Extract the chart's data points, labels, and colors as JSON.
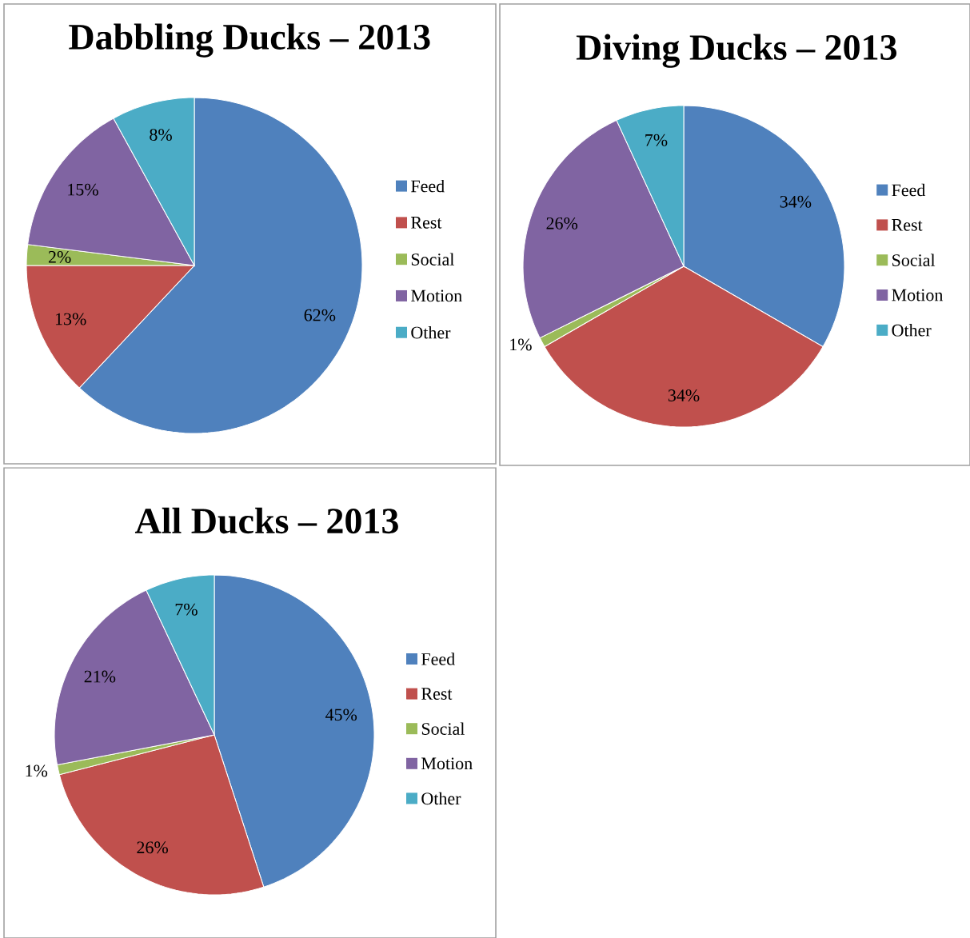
{
  "chart_data": [
    {
      "type": "pie",
      "title": "Dabbling Ducks – 2013",
      "categories": [
        "Feed",
        "Rest",
        "Social",
        "Motion",
        "Other"
      ],
      "values": [
        62,
        13,
        2,
        15,
        8
      ],
      "colors": [
        "#4f81bd",
        "#c0504d",
        "#9bbb59",
        "#8064a2",
        "#4bacc6"
      ],
      "value_labels": [
        "62%",
        "13%",
        "2%",
        "15%",
        "8%"
      ],
      "legend": "right"
    },
    {
      "type": "pie",
      "title": "Diving Ducks – 2013",
      "categories": [
        "Feed",
        "Rest",
        "Social",
        "Motion",
        "Other"
      ],
      "values": [
        34,
        34,
        1,
        26,
        7
      ],
      "colors": [
        "#4f81bd",
        "#c0504d",
        "#9bbb59",
        "#8064a2",
        "#4bacc6"
      ],
      "value_labels": [
        "34%",
        "34%",
        "1%",
        "26%",
        "7%"
      ],
      "legend": "right"
    },
    {
      "type": "pie",
      "title": "All Ducks – 2013",
      "categories": [
        "Feed",
        "Rest",
        "Social",
        "Motion",
        "Other"
      ],
      "values": [
        45,
        26,
        1,
        21,
        7
      ],
      "colors": [
        "#4f81bd",
        "#c0504d",
        "#9bbb59",
        "#8064a2",
        "#4bacc6"
      ],
      "value_labels": [
        "45%",
        "26%",
        "1%",
        "21%",
        "7%"
      ],
      "legend": "right"
    }
  ]
}
